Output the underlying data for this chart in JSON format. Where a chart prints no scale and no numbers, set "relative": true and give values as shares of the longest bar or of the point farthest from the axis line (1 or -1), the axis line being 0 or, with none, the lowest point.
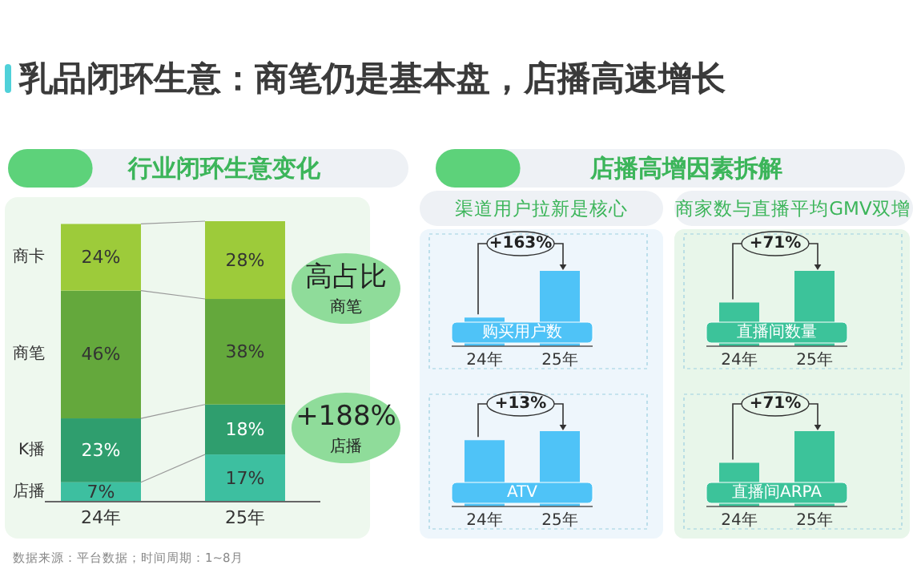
{
  "chart_data": [
    {
      "type": "bar",
      "stacked": true,
      "title": "乳品闭环生意：商笔仍是基本盘，店播高速增长",
      "subtitle": "行业闭环生意变化",
      "categories": [
        "24年",
        "25年"
      ],
      "legend": false,
      "series": [
        {
          "name": "店播",
          "color": "#3dbfa0",
          "values": [
            7,
            17
          ],
          "value_labels": [
            "7%",
            "17%"
          ]
        },
        {
          "name": "K播",
          "color": "#2f9e6e",
          "values": [
            23,
            18
          ],
          "value_labels": [
            "23%",
            "18%"
          ]
        },
        {
          "name": "商笔",
          "color": "#64a83c",
          "values": [
            46,
            38
          ],
          "value_labels": [
            "46%",
            "38%"
          ]
        },
        {
          "name": "商卡",
          "color": "#9dcb3a",
          "values": [
            24,
            28
          ],
          "value_labels": [
            "24%",
            "28%"
          ]
        }
      ],
      "annotations": [
        "高占比",
        "商笔",
        "+188%",
        "店播",
        "数据来源：平台数据；时间周期：1~8月"
      ]
    },
    {
      "type": "bar",
      "relative": true,
      "title": "店播高增因素拆解",
      "subtitle": "渠道用户拉新是核心",
      "categories": [
        "24年",
        "25年"
      ],
      "values": [
        0.38,
        1
      ],
      "color": "#4fc3f7",
      "annotations": [
        "购买用户数",
        "+163%"
      ]
    },
    {
      "type": "bar",
      "relative": true,
      "subtitle": "商家数与直播平均GMV双增",
      "categories": [
        "24年",
        "25年"
      ],
      "values": [
        0.58,
        1
      ],
      "color": "#3cc39a",
      "annotations": [
        "直播间数量",
        "+71%"
      ]
    },
    {
      "type": "bar",
      "relative": true,
      "categories": [
        "24年",
        "25年"
      ],
      "values": [
        0.88,
        1
      ],
      "color": "#4fc3f7",
      "annotations": [
        "ATV",
        "+13%"
      ]
    },
    {
      "type": "bar",
      "relative": true,
      "categories": [
        "24年",
        "25年"
      ],
      "values": [
        0.58,
        1
      ],
      "color": "#3cc39a",
      "annotations": [
        "直播间ARPA",
        "+71%"
      ]
    }
  ]
}
